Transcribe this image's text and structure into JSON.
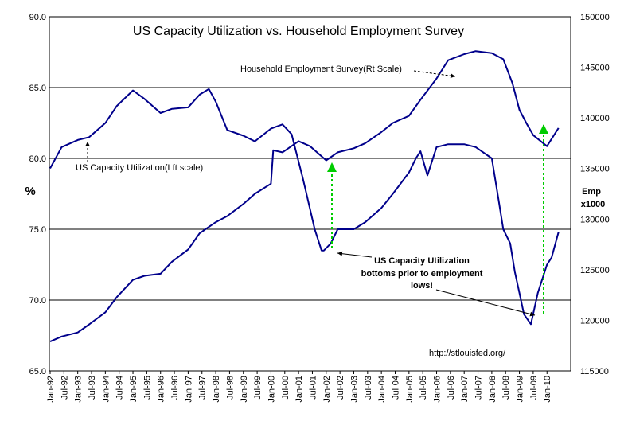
{
  "chart_data": {
    "type": "line",
    "title": "US Capacity Utilization vs. Household Employment Survey",
    "ylabel": "%",
    "y2label_lines": [
      "Emp",
      "x1000"
    ],
    "ylim": [
      65,
      90
    ],
    "y2lim": [
      115000,
      150000
    ],
    "y_ticks": [
      "65.0",
      "70.0",
      "75.0",
      "80.0",
      "85.0",
      "90.0"
    ],
    "y2_ticks": [
      "115000",
      "120000",
      "125000",
      "130000",
      "135000",
      "140000",
      "145000",
      "150000"
    ],
    "x_ticks": [
      "Jan-92",
      "Jul-92",
      "Jan-93",
      "Jul-93",
      "Jan-94",
      "Jul-94",
      "Jan-95",
      "Jul-95",
      "Jan-96",
      "Jul-96",
      "Jan-97",
      "Jul-97",
      "Jan-98",
      "Jul-98",
      "Jan-99",
      "Jul-99",
      "Jan-00",
      "Jul-00",
      "Jan-01",
      "Jul-01",
      "Jan-02",
      "Jul-02",
      "Jan-03",
      "Jul-03",
      "Jan-04",
      "Jul-04",
      "Jan-05",
      "Jul-05",
      "Jan-06",
      "Jul-06",
      "Jan-07",
      "Jul-07",
      "Jan-08",
      "Jul-08",
      "Jan-09",
      "Jul-09",
      "Jan-10"
    ],
    "grid": true,
    "colors": {
      "line": "#00008B",
      "arrow_green": "#00CC00"
    },
    "series": [
      {
        "name": "US Capacity Utilization",
        "axis": "left",
        "x": [
          "1992-01",
          "1992-06",
          "1993-01",
          "1993-06",
          "1994-01",
          "1994-06",
          "1995-01",
          "1995-06",
          "1996-01",
          "1996-06",
          "1997-01",
          "1997-06",
          "1997-10",
          "1998-01",
          "1998-06",
          "1999-01",
          "1999-06",
          "2000-01",
          "2000-06",
          "2000-10",
          "2001-03",
          "2001-08",
          "2001-11",
          "2001-12",
          "2002-03",
          "2002-06",
          "2003-01",
          "2003-06",
          "2004-01",
          "2004-06",
          "2005-01",
          "2005-04",
          "2005-06",
          "2005-09",
          "2006-01",
          "2006-06",
          "2007-01",
          "2007-06",
          "2008-01",
          "2008-04",
          "2008-06",
          "2008-09",
          "2008-11",
          "2009-01",
          "2009-03",
          "2009-06",
          "2009-09",
          "2010-01",
          "2010-03",
          "2010-06"
        ],
        "values": [
          79.3,
          80.8,
          81.3,
          81.5,
          82.5,
          83.7,
          84.8,
          84.2,
          83.2,
          83.5,
          83.6,
          84.5,
          84.9,
          84.0,
          82.0,
          81.6,
          81.2,
          82.1,
          82.4,
          81.7,
          78.5,
          75.0,
          73.5,
          73.5,
          74.0,
          75.0,
          75.0,
          75.5,
          76.5,
          77.5,
          79.0,
          80.0,
          80.5,
          78.8,
          80.8,
          81.0,
          81.0,
          80.8,
          80.0,
          77.0,
          75.0,
          74.0,
          72.0,
          70.5,
          69.0,
          68.3,
          70.5,
          72.5,
          73.0,
          74.8
        ]
      },
      {
        "name": "Household Employment Survey(Rt Scale)",
        "axis": "right",
        "x": [
          "1992-01",
          "1992-06",
          "1993-01",
          "1993-06",
          "1994-01",
          "1994-06",
          "1995-01",
          "1995-06",
          "1996-01",
          "1996-06",
          "1997-01",
          "1997-06",
          "1998-01",
          "1998-06",
          "1999-01",
          "1999-06",
          "2000-01",
          "2000-02",
          "2000-06",
          "2001-01",
          "2001-06",
          "2002-01",
          "2002-06",
          "2003-01",
          "2003-06",
          "2004-01",
          "2004-06",
          "2005-01",
          "2005-06",
          "2006-01",
          "2006-06",
          "2007-01",
          "2007-06",
          "2008-01",
          "2008-06",
          "2008-10",
          "2009-01",
          "2009-04",
          "2009-07",
          "2010-01",
          "2010-06"
        ],
        "values": [
          117900,
          118400,
          118800,
          119600,
          120800,
          122300,
          124000,
          124400,
          124600,
          125800,
          127000,
          128600,
          129700,
          130300,
          131500,
          132500,
          133500,
          136800,
          136600,
          137700,
          137200,
          135800,
          136600,
          137000,
          137500,
          138600,
          139500,
          140200,
          141800,
          143900,
          145700,
          146300,
          146600,
          146400,
          145800,
          143400,
          140800,
          139500,
          138300,
          137200,
          139000
        ]
      }
    ],
    "annotations": {
      "household_label": "Household Employment Survey(Rt Scale)",
      "capacity_label": "US Capacity Utilization(Lft scale)",
      "callout_lines": [
        "US Capacity Utilization",
        "bottoms prior to employment",
        "lows!"
      ],
      "source": "http://stlouisfed.org/"
    }
  }
}
